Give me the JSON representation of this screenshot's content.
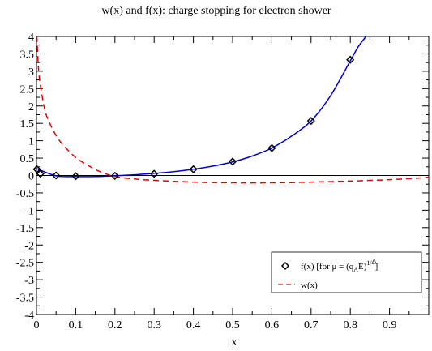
{
  "chart_data": {
    "type": "line",
    "title": "w(x) and f(x): charge stopping for electron shower",
    "xlabel": "x",
    "ylabel": "",
    "xlim": [
      0,
      1
    ],
    "ylim": [
      -4,
      4
    ],
    "x_ticks": [
      0,
      0.1,
      0.2,
      0.3,
      0.4,
      0.5,
      0.6,
      0.7,
      0.8,
      0.9
    ],
    "x_tick_labels": [
      "0",
      "0.1",
      "0.2",
      "0.3",
      "0.4",
      "0.5",
      "0.6",
      "0.7",
      "0.8",
      "0.9"
    ],
    "y_ticks": [
      -4,
      -3.5,
      -3,
      -2.5,
      -2,
      -1.5,
      -1,
      -0.5,
      0,
      0.5,
      1,
      1.5,
      2,
      2.5,
      3,
      3.5,
      4
    ],
    "y_tick_labels": [
      "-4",
      "-3.5",
      "-3",
      "-2.5",
      "-2",
      "-1.5",
      "-1",
      "-0.5",
      "0",
      "0.5",
      "1",
      "1.5",
      "2",
      "2.5",
      "3",
      "3.5",
      "4"
    ],
    "zero_line": true,
    "legend_position": "bottom-right",
    "series": [
      {
        "name": "f(x)  [for μ = (q̂A E)1/4]",
        "style": "solid",
        "color": "#0000cc",
        "x": [
          0,
          0.05,
          0.1,
          0.15,
          0.2,
          0.25,
          0.3,
          0.35,
          0.4,
          0.45,
          0.5,
          0.55,
          0.6,
          0.65,
          0.7,
          0.75,
          0.8,
          0.82,
          0.84
        ],
        "y": [
          0.2,
          -0.01,
          -0.03,
          -0.03,
          -0.01,
          0.02,
          0.06,
          0.11,
          0.18,
          0.27,
          0.39,
          0.56,
          0.79,
          1.13,
          1.57,
          2.3,
          3.3,
          3.7,
          4.0
        ]
      },
      {
        "name": "f(x) markers",
        "style": "markers",
        "marker": "diamond",
        "color": "#000000",
        "x": [
          0.001,
          0.01,
          0.05,
          0.1,
          0.2,
          0.3,
          0.4,
          0.5,
          0.6,
          0.7,
          0.8
        ],
        "y": [
          0.18,
          0.05,
          0.0,
          -0.02,
          -0.01,
          0.05,
          0.18,
          0.4,
          0.79,
          1.57,
          3.33
        ]
      },
      {
        "name": "w(x)",
        "style": "dashed",
        "color": "#e60000",
        "x": [
          0.001,
          0.005,
          0.01,
          0.02,
          0.03,
          0.05,
          0.07,
          0.1,
          0.13,
          0.16,
          0.2,
          0.25,
          0.3,
          0.4,
          0.5,
          0.6,
          0.7,
          0.8,
          0.9,
          0.95,
          0.98,
          1.0
        ],
        "y": [
          4.0,
          3.1,
          2.6,
          1.95,
          1.6,
          1.15,
          0.85,
          0.52,
          0.3,
          0.12,
          -0.03,
          -0.1,
          -0.14,
          -0.19,
          -0.21,
          -0.21,
          -0.19,
          -0.16,
          -0.12,
          -0.09,
          -0.07,
          -0.05
        ]
      }
    ],
    "legend": [
      {
        "label_main": "f(x)  [for μ = (q",
        "label_hat": "^",
        "label_sub": "A",
        "label_tail": "E)",
        "label_sup": "1/4",
        "label_close": "]",
        "symbol": "diamond"
      },
      {
        "label_main": "w(x)",
        "symbol": "dashed-red"
      }
    ]
  }
}
